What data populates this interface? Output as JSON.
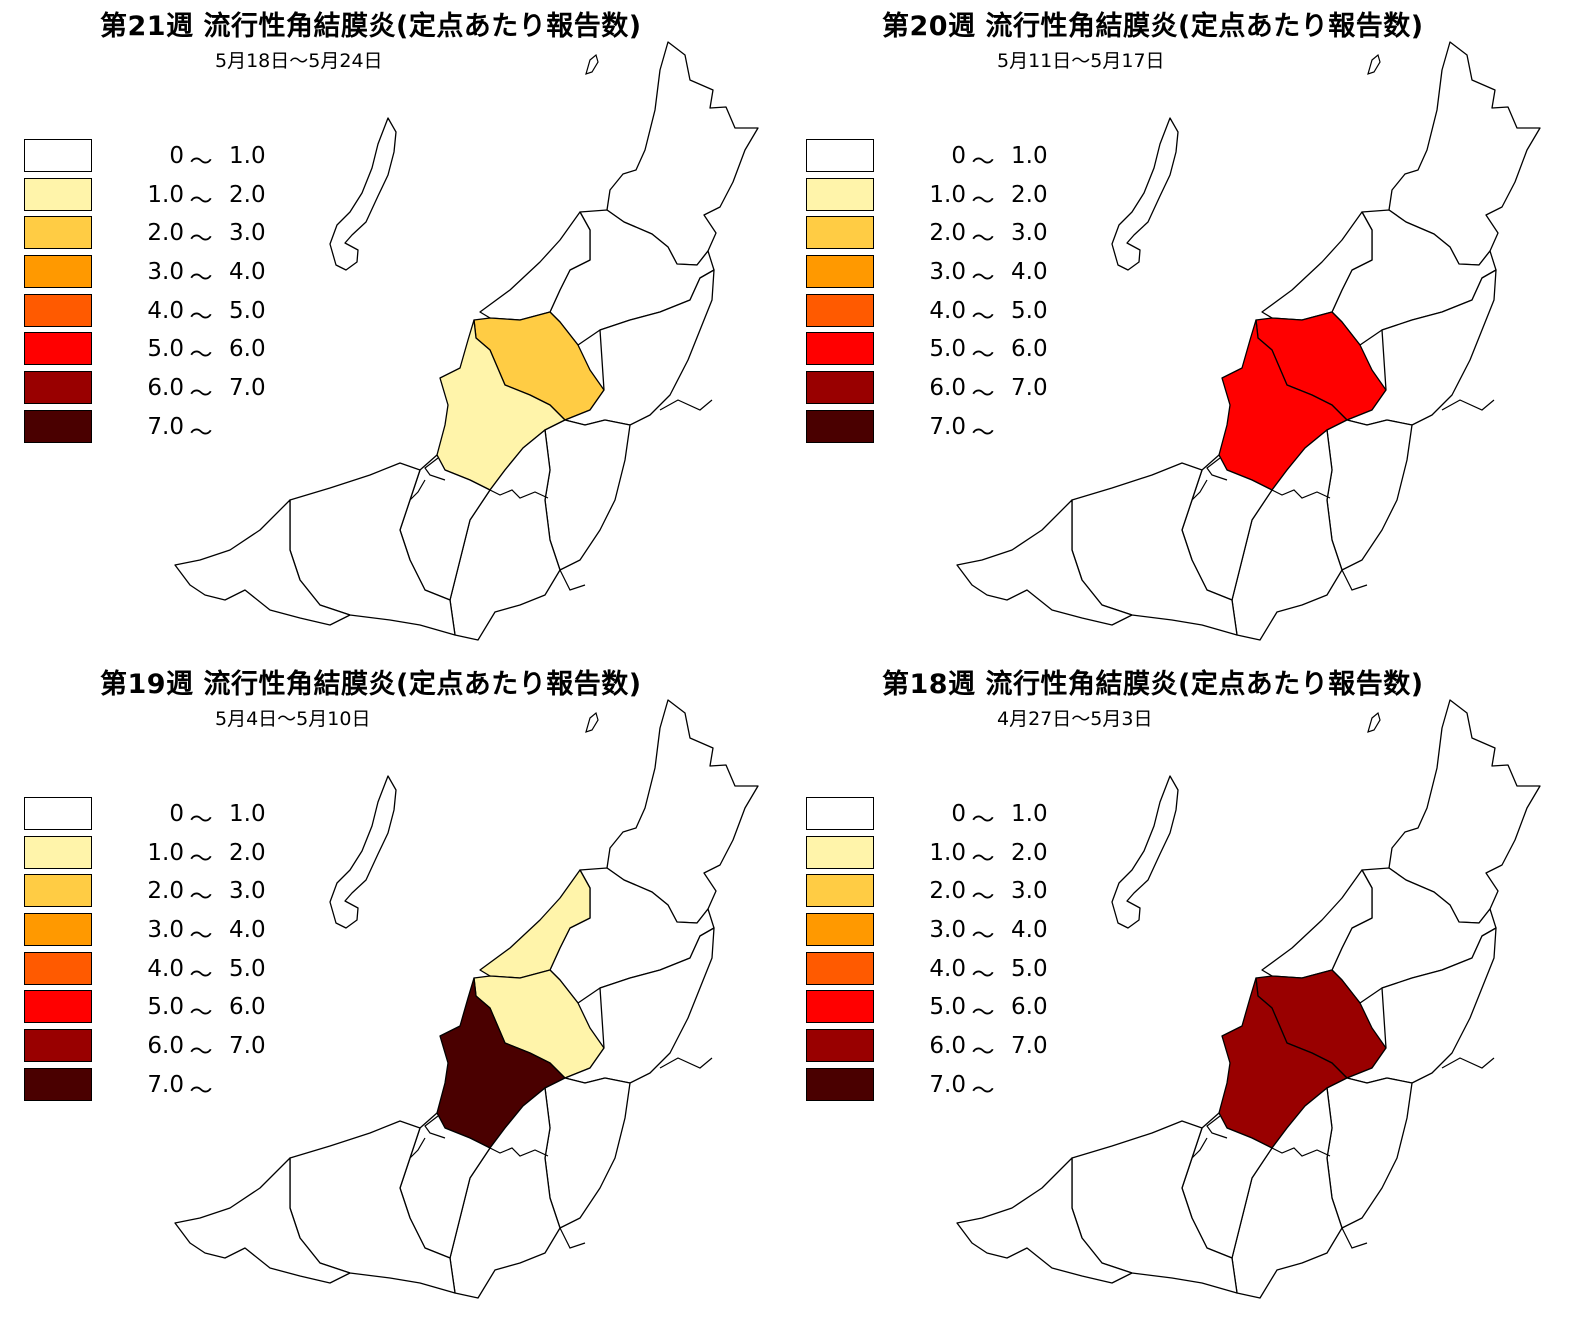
{
  "colors": {
    "scale": [
      "#ffffff",
      "#fff4aa",
      "#ffcc44",
      "#ff9900",
      "#ff5a00",
      "#ff0000",
      "#990000",
      "#4a0000"
    ]
  },
  "legend": [
    {
      "from": "0",
      "to": "1.0"
    },
    {
      "from": "1.0",
      "to": "2.0"
    },
    {
      "from": "2.0",
      "to": "3.0"
    },
    {
      "from": "3.0",
      "to": "4.0"
    },
    {
      "from": "4.0",
      "to": "5.0"
    },
    {
      "from": "5.0",
      "to": "6.0"
    },
    {
      "from": "6.0",
      "to": "7.0"
    },
    {
      "from": "7.0",
      "to": ""
    }
  ],
  "legend_tilde": "〜",
  "panels": [
    {
      "title": "第21週 流行性角結膜炎(定点あたり報告数)",
      "subtitle": "5月18日〜5月24日",
      "levels": {
        "sado": 0,
        "murakami": 0,
        "niigata": 0,
        "shibata": 0,
        "sanjo": 2,
        "nagaoka": 1,
        "minamiuonuma": 0,
        "tokamachi": 0,
        "kashiwazaki": 0,
        "joetsu": 0,
        "itoigawa": 0,
        "uonuma": 0
      }
    },
    {
      "title": "第20週 流行性角結膜炎(定点あたり報告数)",
      "subtitle": "5月11日〜5月17日",
      "levels": {
        "sado": 0,
        "murakami": 0,
        "niigata": 0,
        "shibata": 0,
        "sanjo": 5,
        "nagaoka": 5,
        "minamiuonuma": 0,
        "tokamachi": 0,
        "kashiwazaki": 0,
        "joetsu": 0,
        "itoigawa": 0,
        "uonuma": 0
      }
    },
    {
      "title": "第19週 流行性角結膜炎(定点あたり報告数)",
      "subtitle": "5月4日〜5月10日",
      "levels": {
        "sado": 0,
        "murakami": 0,
        "niigata": 1,
        "shibata": 0,
        "sanjo": 1,
        "nagaoka": 7,
        "minamiuonuma": 0,
        "tokamachi": 0,
        "kashiwazaki": 0,
        "joetsu": 0,
        "itoigawa": 0,
        "uonuma": 0
      }
    },
    {
      "title": "第18週 流行性角結膜炎(定点あたり報告数)",
      "subtitle": "4月27日〜5月3日",
      "levels": {
        "sado": 0,
        "murakami": 0,
        "niigata": 0,
        "shibata": 0,
        "sanjo": 6,
        "nagaoka": 6,
        "minamiuonuma": 0,
        "tokamachi": 0,
        "kashiwazaki": 0,
        "joetsu": 0,
        "itoigawa": 0,
        "uonuma": 0
      }
    }
  ]
}
